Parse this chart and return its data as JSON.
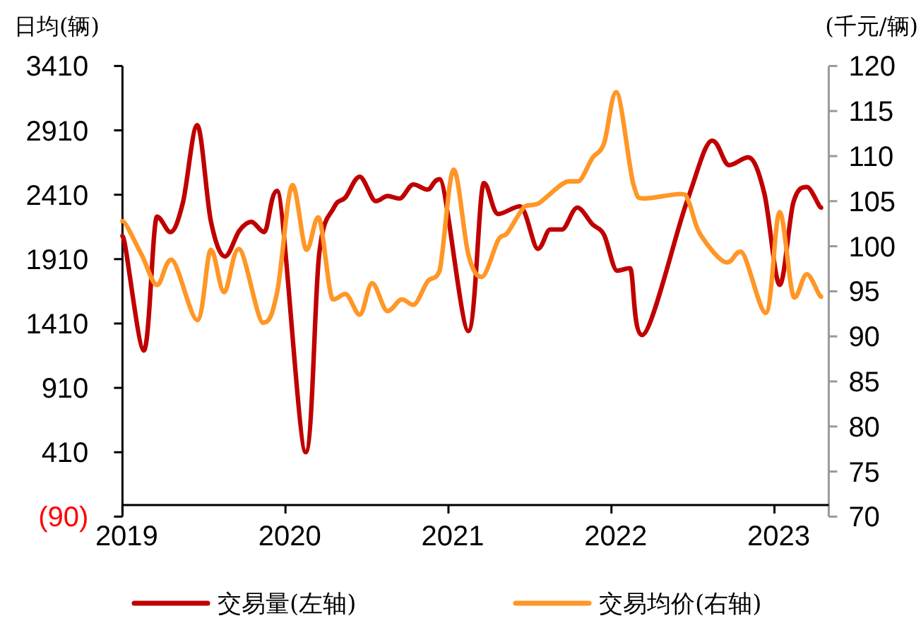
{
  "chart_data": {
    "type": "line",
    "ylabel": "日均(辆)",
    "y2label": "(千元/辆)",
    "xlim": [
      "2019-01",
      "2023-05"
    ],
    "xticks": [
      {
        "value": "2019-01",
        "label": "2019"
      },
      {
        "value": "2020-01",
        "label": "2020"
      },
      {
        "value": "2021-01",
        "label": "2021"
      },
      {
        "value": "2022-01",
        "label": "2022"
      },
      {
        "value": "2023-01",
        "label": "2023"
      }
    ],
    "ylim": [
      -90,
      3410
    ],
    "yticks": [
      {
        "value": -90,
        "label": "(90)"
      },
      410,
      910,
      1410,
      1910,
      2410,
      2910,
      3410
    ],
    "y2lim": [
      70,
      120
    ],
    "y2ticks": [
      70,
      75,
      80,
      85,
      90,
      95,
      100,
      105,
      110,
      115,
      120
    ],
    "legend": "bottom",
    "grid": false,
    "marker": "none",
    "line_style": "solid",
    "series": [
      {
        "name": "交易量(左轴)",
        "color": "#c00000",
        "x": [
          "2019-01-01",
          "2019-02-17",
          "2019-03-18",
          "2019-04-17",
          "2019-05-15",
          "2019-06-16",
          "2019-07-17",
          "2019-08-18",
          "2019-09-19",
          "2019-10-16",
          "2019-11-14",
          "2019-12-13",
          "2020-02-15",
          "2020-03-16",
          "2020-04-18",
          "2020-05-14",
          "2020-06-15",
          "2020-07-21",
          "2020-08-17",
          "2020-09-13",
          "2020-10-14",
          "2020-11-15",
          "2020-12-12",
          "2021-02-14",
          "2021-03-20",
          "2021-04-21",
          "2021-06-09",
          "2021-07-19",
          "2021-08-16",
          "2021-09-12",
          "2021-10-16",
          "2021-11-19",
          "2021-12-15",
          "2022-01-14",
          "2022-02-11",
          "2022-03-09",
          "2022-06-17",
          "2022-08-14",
          "2022-09-21",
          "2022-11-03",
          "2022-12-09",
          "2023-01-13",
          "2023-02-12",
          "2023-03-13",
          "2023-04-14"
        ],
        "values": [
          2090,
          1200,
          2240,
          2120,
          2350,
          2950,
          2200,
          1930,
          2130,
          2200,
          2120,
          2440,
          410,
          1950,
          2310,
          2390,
          2550,
          2360,
          2400,
          2380,
          2490,
          2450,
          2530,
          1350,
          2500,
          2260,
          2320,
          1990,
          2140,
          2140,
          2310,
          2180,
          2100,
          1820,
          1840,
          1320,
          2350,
          2830,
          2640,
          2700,
          2420,
          1710,
          2350,
          2470,
          2310
        ]
      },
      {
        "name": "交易均价(右轴)",
        "color": "#ff9626",
        "axis": "y2",
        "x": [
          "2019-01-01",
          "2019-02-12",
          "2019-03-18",
          "2019-04-19",
          "2019-06-16",
          "2019-07-17",
          "2019-08-16",
          "2019-09-18",
          "2019-11-12",
          "2019-12-13",
          "2020-01-17",
          "2020-02-17",
          "2020-03-14",
          "2020-04-16",
          "2020-05-14",
          "2020-06-15",
          "2020-07-13",
          "2020-08-17",
          "2020-09-18",
          "2020-10-14",
          "2020-11-15",
          "2020-12-12",
          "2021-01-13",
          "2021-02-14",
          "2021-03-15",
          "2021-04-21",
          "2021-05-12",
          "2021-06-19",
          "2021-07-19",
          "2021-09-26",
          "2021-10-18",
          "2021-11-19",
          "2021-12-15",
          "2022-01-12",
          "2022-02-18",
          "2022-03-14",
          "2022-06-03",
          "2022-06-22",
          "2022-07-18",
          "2022-09-16",
          "2022-10-17",
          "2022-12-12",
          "2023-01-13",
          "2023-02-14",
          "2023-03-13",
          "2023-04-14"
        ],
        "values": [
          102.8,
          99.1,
          95.7,
          98.5,
          91.8,
          99.6,
          94.9,
          99.7,
          91.5,
          94.9,
          106.8,
          99.6,
          103.2,
          94.1,
          94.7,
          92.4,
          95.9,
          92.8,
          94.1,
          93.5,
          96.1,
          97.3,
          108.5,
          99.1,
          96.6,
          100.7,
          101.5,
          104.4,
          104.7,
          107.2,
          107.2,
          109.8,
          111.4,
          117.1,
          106.9,
          105.3,
          105.8,
          104.9,
          101.3,
          98.2,
          99.4,
          92.6,
          103.8,
          94.3,
          96.9,
          94.4
        ]
      }
    ]
  }
}
